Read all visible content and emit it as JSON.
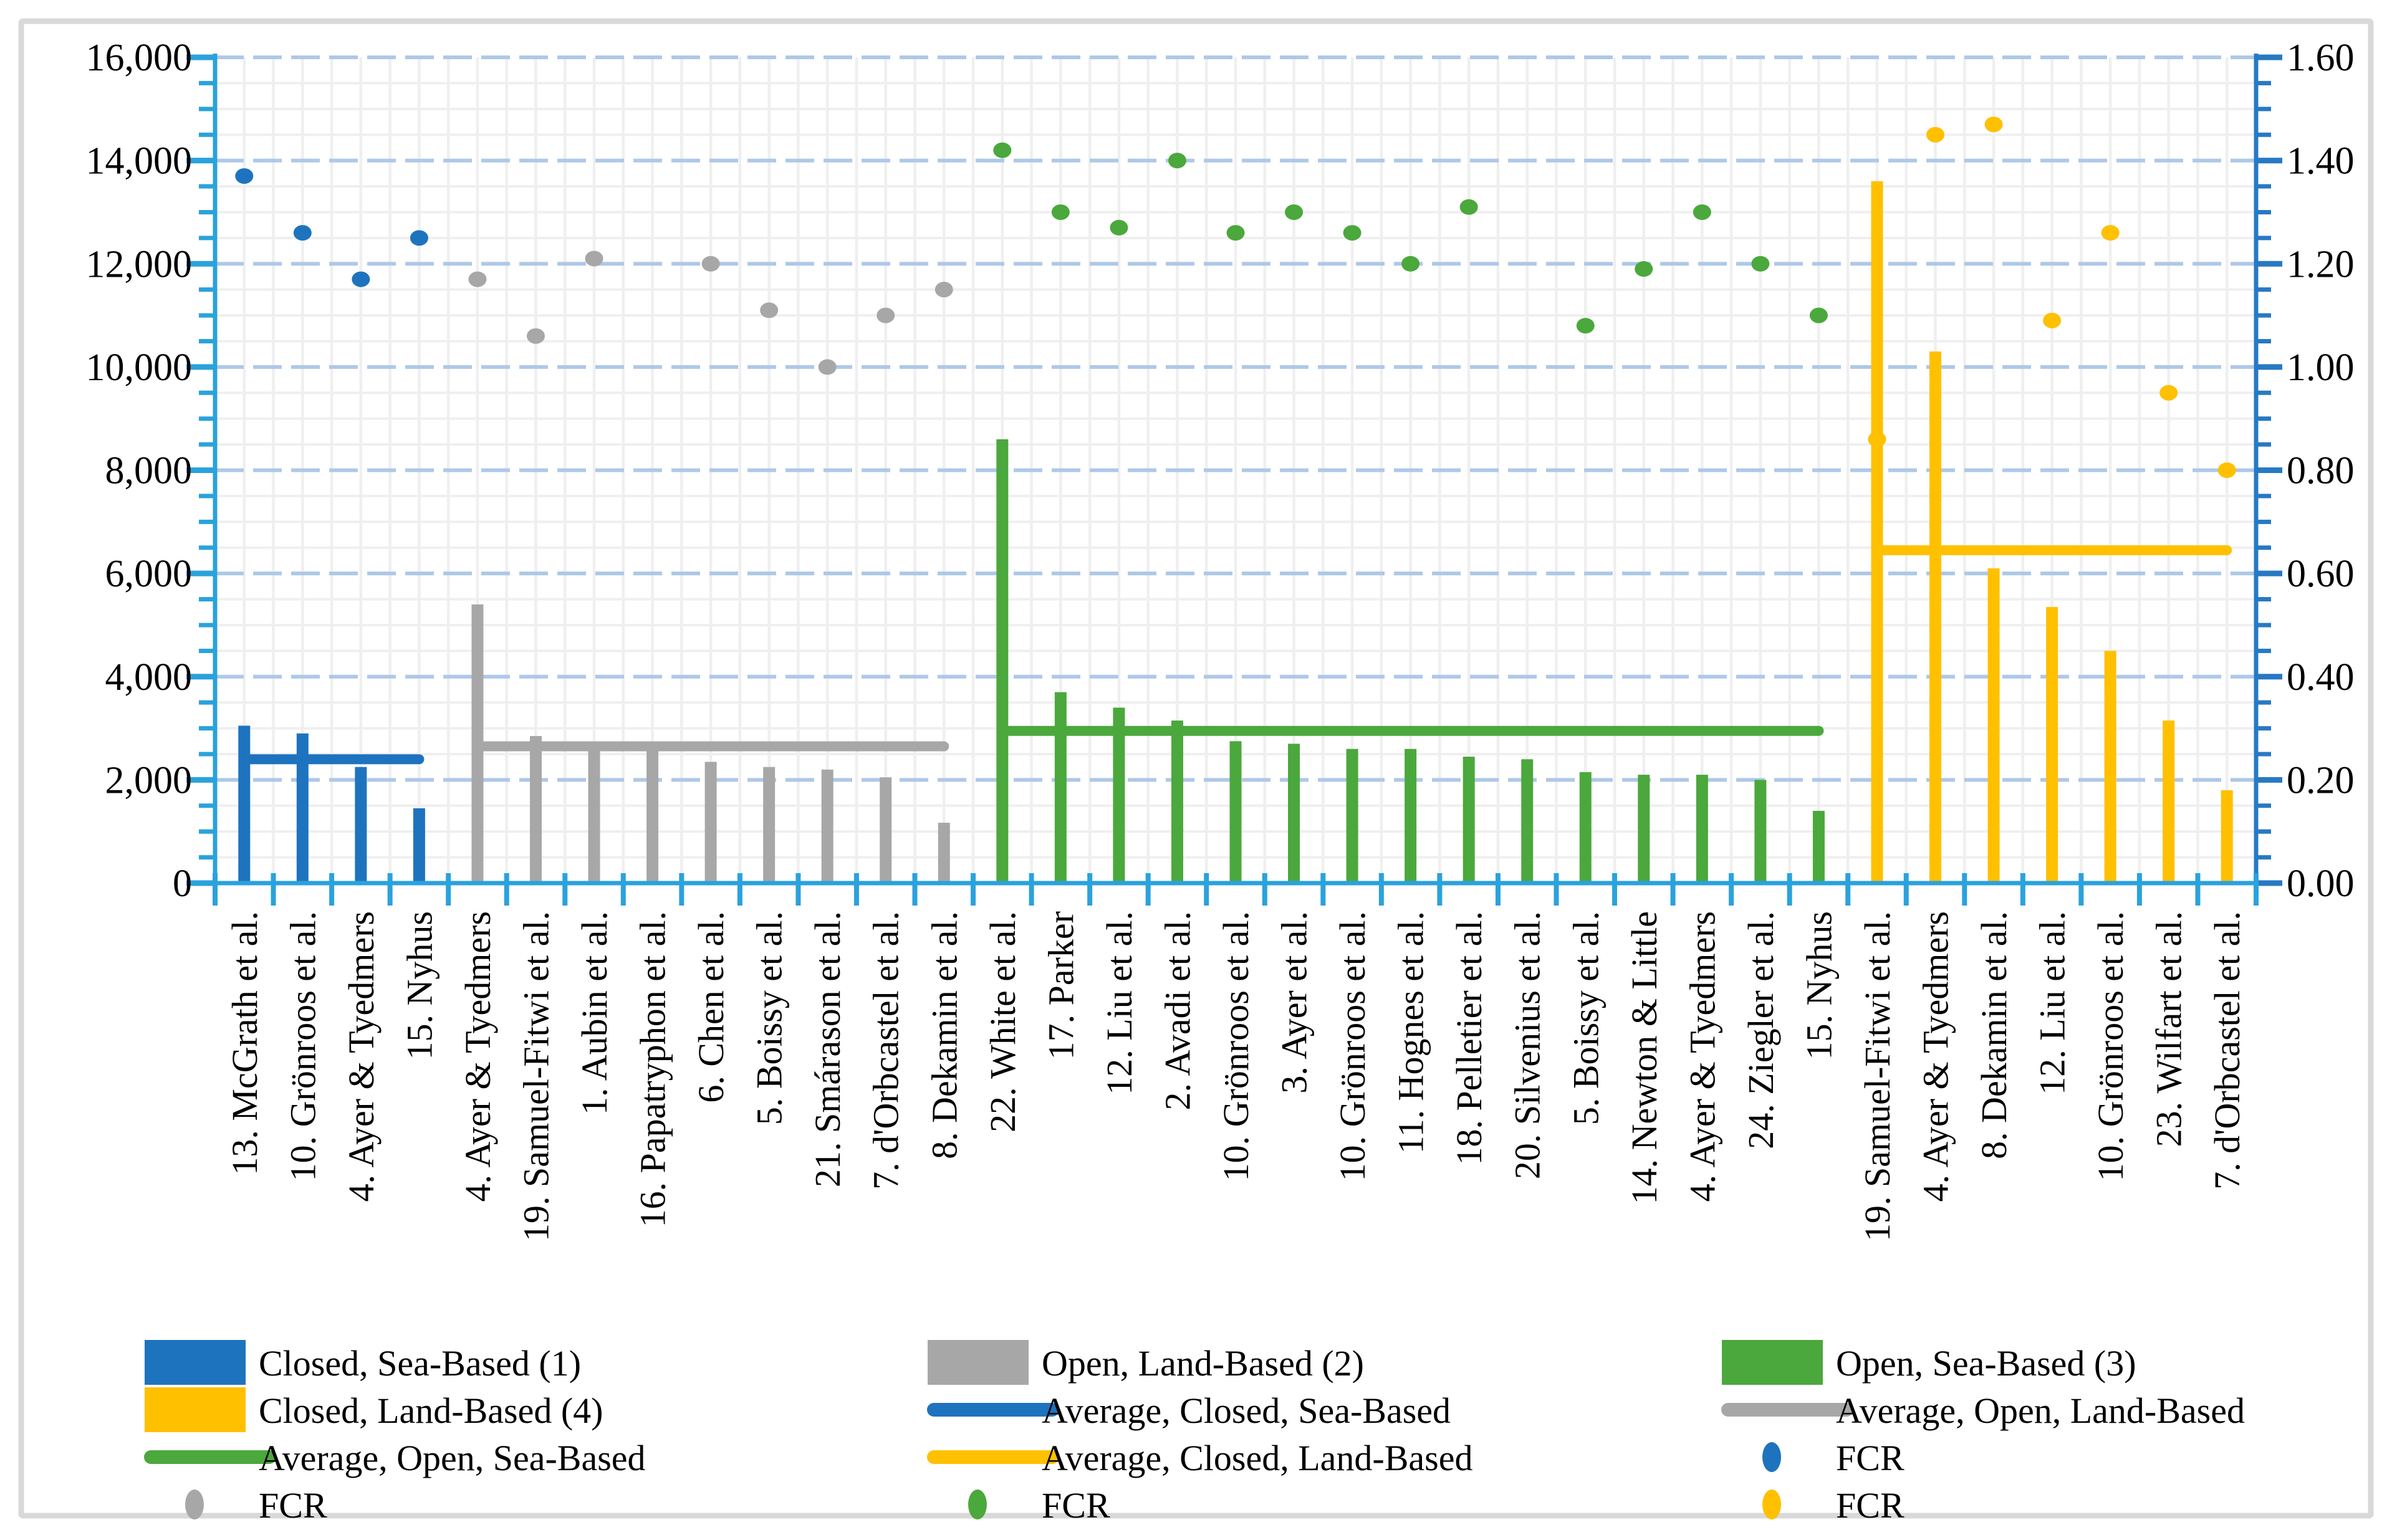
{
  "figure": {
    "background": "#ffffff",
    "border_color": "#d9d9d9"
  },
  "chart_data": {
    "type": "bar",
    "title": "",
    "xlabel": "",
    "ylabel": "",
    "grid": true,
    "left_axis": {
      "min": 0,
      "max": 16000,
      "major": 2000,
      "minor": 500,
      "tick_labels": [
        "0",
        "2,000",
        "4,000",
        "6,000",
        "8,000",
        "10,000",
        "12,000",
        "14,000",
        "16,000"
      ],
      "color": "#2aa2dc"
    },
    "right_axis": {
      "min": 0.0,
      "max": 1.6,
      "major": 0.2,
      "minor": 0.05,
      "tick_labels": [
        "0.00",
        "0.20",
        "0.40",
        "0.60",
        "0.80",
        "1.00",
        "1.20",
        "1.40",
        "1.60"
      ],
      "color": "#2779c4"
    },
    "gridline_colors": {
      "major": "#aec8e8",
      "minor": "#efefef"
    },
    "groups": [
      {
        "name": "Closed, Sea-Based (1)",
        "color": "#1e73bf",
        "average": 2400,
        "average_label": "Average, Closed, Sea-Based"
      },
      {
        "name": "Open, Land-Based (2)",
        "color": "#a7a7a7",
        "average": 2650,
        "average_label": "Average, Open, Land-Based"
      },
      {
        "name": "Open, Sea-Based (3)",
        "color": "#4ba83c",
        "average": 2950,
        "average_label": "Average, Open, Sea-Based"
      },
      {
        "name": "Closed, Land-Based (4)",
        "color": "#ffc000",
        "average": 6450,
        "average_label": "Average, Closed, Land-Based"
      }
    ],
    "fcr_label": "FCR",
    "categories": [
      {
        "label": "13. McGrath et al.",
        "group": 0,
        "bar": 3050,
        "fcr": 1.37
      },
      {
        "label": "10. Grönroos et al.",
        "group": 0,
        "bar": 2900,
        "fcr": 1.26
      },
      {
        "label": "4. Ayer & Tyedmers",
        "group": 0,
        "bar": 2250,
        "fcr": 1.17
      },
      {
        "label": "15. Nyhus",
        "group": 0,
        "bar": 1450,
        "fcr": 1.25
      },
      {
        "label": "4. Ayer & Tyedmers",
        "group": 1,
        "bar": 5400,
        "fcr": 1.17
      },
      {
        "label": "19. Samuel-Fitwi et al.",
        "group": 1,
        "bar": 2850,
        "fcr": 1.06
      },
      {
        "label": "1. Aubin et al.",
        "group": 1,
        "bar": 2700,
        "fcr": 1.21
      },
      {
        "label": "16. Papatryphon et al.",
        "group": 1,
        "bar": 2600,
        "fcr": null
      },
      {
        "label": "6. Chen et al.",
        "group": 1,
        "bar": 2350,
        "fcr": 1.2
      },
      {
        "label": "5. Boissy et al.",
        "group": 1,
        "bar": 2250,
        "fcr": 1.11
      },
      {
        "label": "21. Smárason et al.",
        "group": 1,
        "bar": 2200,
        "fcr": 1.0
      },
      {
        "label": "7. d'Orbcastel et al.",
        "group": 1,
        "bar": 2050,
        "fcr": 1.1
      },
      {
        "label": "8. Dekamin et al.",
        "group": 1,
        "bar": 1170,
        "fcr": 1.15
      },
      {
        "label": "22. White et al.",
        "group": 2,
        "bar": 8600,
        "fcr": 1.42
      },
      {
        "label": "17. Parker",
        "group": 2,
        "bar": 3700,
        "fcr": 1.3
      },
      {
        "label": "12. Liu et al.",
        "group": 2,
        "bar": 3400,
        "fcr": 1.27
      },
      {
        "label": "2. Avadi et al.",
        "group": 2,
        "bar": 3150,
        "fcr": 1.4
      },
      {
        "label": "10. Grönroos et al.",
        "group": 2,
        "bar": 2750,
        "fcr": 1.26
      },
      {
        "label": "3. Ayer et al.",
        "group": 2,
        "bar": 2700,
        "fcr": 1.3
      },
      {
        "label": "10. Grönroos et al.",
        "group": 2,
        "bar": 2600,
        "fcr": 1.26
      },
      {
        "label": "11. Hognes et al.",
        "group": 2,
        "bar": 2600,
        "fcr": 1.2
      },
      {
        "label": "18. Pelletier et al.",
        "group": 2,
        "bar": 2450,
        "fcr": 1.31
      },
      {
        "label": "20. Silvenius et al.",
        "group": 2,
        "bar": 2400,
        "fcr": null
      },
      {
        "label": "5. Boissy et al.",
        "group": 2,
        "bar": 2150,
        "fcr": 1.08
      },
      {
        "label": "14. Newton & Little",
        "group": 2,
        "bar": 2100,
        "fcr": 1.19
      },
      {
        "label": "4. Ayer & Tyedmers",
        "group": 2,
        "bar": 2100,
        "fcr": 1.3
      },
      {
        "label": "24. Ziegler et al.",
        "group": 2,
        "bar": 2000,
        "fcr": 1.2
      },
      {
        "label": "15. Nyhus",
        "group": 2,
        "bar": 1400,
        "fcr": 1.1
      },
      {
        "label": "19. Samuel-Fitwi et al.",
        "group": 3,
        "bar": 13600,
        "fcr": 0.86
      },
      {
        "label": "4. Ayer & Tyedmers",
        "group": 3,
        "bar": 10300,
        "fcr": 1.45
      },
      {
        "label": "8. Dekamin et al.",
        "group": 3,
        "bar": 6100,
        "fcr": 1.47
      },
      {
        "label": "12. Liu et al.",
        "group": 3,
        "bar": 5350,
        "fcr": 1.09
      },
      {
        "label": "10. Grönroos et al.",
        "group": 3,
        "bar": 4500,
        "fcr": 1.26
      },
      {
        "label": "23. Wilfart et al.",
        "group": 3,
        "bar": 3150,
        "fcr": 0.95
      },
      {
        "label": "7. d'Orbcastel et al.",
        "group": 3,
        "bar": 1800,
        "fcr": 0.8
      }
    ],
    "legend": {
      "items": [
        {
          "col": 0,
          "row": 0,
          "marker": "rect",
          "group": 0,
          "label": "Closed, Sea-Based (1)"
        },
        {
          "col": 1,
          "row": 0,
          "marker": "rect",
          "group": 1,
          "label": "Open, Land-Based (2)"
        },
        {
          "col": 2,
          "row": 0,
          "marker": "rect",
          "group": 2,
          "label": "Open, Sea-Based (3)"
        },
        {
          "col": 0,
          "row": 1,
          "marker": "rect",
          "group": 3,
          "label": "Closed, Land-Based (4)"
        },
        {
          "col": 1,
          "row": 1,
          "marker": "line",
          "group": 0,
          "label": "Average, Closed, Sea-Based"
        },
        {
          "col": 2,
          "row": 1,
          "marker": "line",
          "group": 1,
          "label": "Average, Open, Land-Based"
        },
        {
          "col": 0,
          "row": 2,
          "marker": "line",
          "group": 2,
          "label": "Average, Open, Sea-Based"
        },
        {
          "col": 1,
          "row": 2,
          "marker": "line",
          "group": 3,
          "label": "Average, Closed, Land-Based"
        },
        {
          "col": 2,
          "row": 2,
          "marker": "dot",
          "group": 0,
          "label": "FCR"
        },
        {
          "col": 0,
          "row": 3,
          "marker": "dot",
          "group": 1,
          "label": "FCR"
        },
        {
          "col": 1,
          "row": 3,
          "marker": "dot",
          "group": 2,
          "label": "FCR"
        },
        {
          "col": 2,
          "row": 3,
          "marker": "dot",
          "group": 3,
          "label": "FCR"
        }
      ]
    }
  }
}
